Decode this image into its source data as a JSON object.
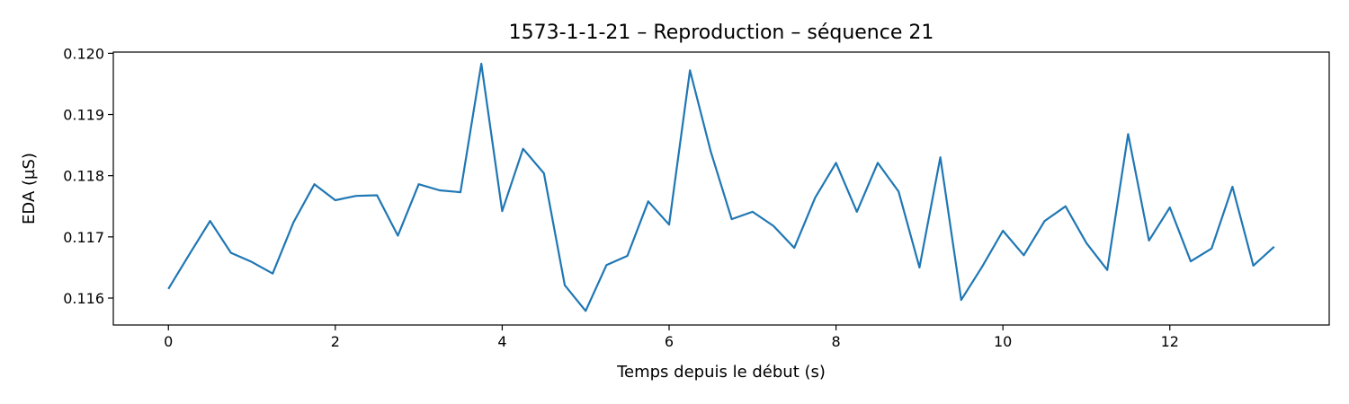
{
  "chart_data": {
    "type": "line",
    "title": "1573-1-1-21 – Reproduction – séquence 21",
    "xlabel": "Temps depuis le début (s)",
    "ylabel": "EDA (µS)",
    "xlim": [
      -0.66,
      13.91
    ],
    "ylim": [
      0.11556,
      0.12002
    ],
    "xticks": [
      0,
      2,
      4,
      6,
      8,
      10,
      12
    ],
    "xtick_labels": [
      "0",
      "2",
      "4",
      "6",
      "8",
      "10",
      "12"
    ],
    "yticks": [
      0.116,
      0.117,
      0.118,
      0.119,
      0.12
    ],
    "ytick_labels": [
      "0.116",
      "0.117",
      "0.118",
      "0.119",
      "0.120"
    ],
    "grid": false,
    "line_color": "#1f77b4",
    "series": [
      {
        "x": [
          0,
          0.25,
          0.5,
          0.75,
          1,
          1.25,
          1.5,
          1.75,
          2,
          2.25,
          2.5,
          2.75,
          3,
          3.25,
          3.5,
          3.75,
          4,
          4.25,
          4.5,
          4.75,
          5,
          5.25,
          5.5,
          5.75,
          6,
          6.25,
          6.5,
          6.75,
          7,
          7.25,
          7.5,
          7.75,
          8,
          8.25,
          8.5,
          8.75,
          9,
          9.25,
          9.5,
          9.75,
          10,
          10.25,
          10.5,
          10.75,
          11,
          11.25,
          11.5,
          11.75,
          12,
          12.25,
          12.5,
          12.75,
          13,
          13.25
        ],
        "values": [
          0.11615,
          0.11671,
          0.11726,
          0.11674,
          0.11659,
          0.1164,
          0.11724,
          0.11786,
          0.1176,
          0.11767,
          0.11768,
          0.11702,
          0.11786,
          0.11776,
          0.11773,
          0.11983,
          0.11742,
          0.11844,
          0.11804,
          0.11621,
          0.11579,
          0.11654,
          0.11669,
          0.11758,
          0.1172,
          0.11972,
          0.11839,
          0.11729,
          0.11741,
          0.11718,
          0.11682,
          0.11764,
          0.11821,
          0.11741,
          0.11821,
          0.11774,
          0.1165,
          0.1183,
          0.11597,
          0.11651,
          0.1171,
          0.1167,
          0.11726,
          0.1175,
          0.1169,
          0.11646,
          0.11868,
          0.11694,
          0.11748,
          0.1166,
          0.11681,
          0.11782,
          0.11653,
          0.11684
        ]
      }
    ]
  }
}
